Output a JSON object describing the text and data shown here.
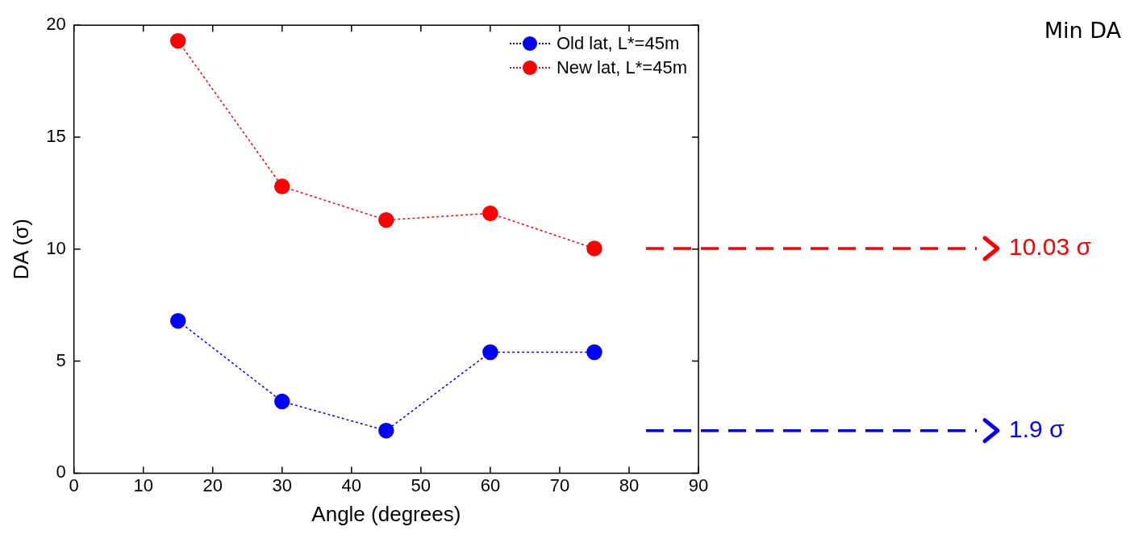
{
  "chart_data": {
    "type": "line",
    "xlabel": "Angle (degrees)",
    "ylabel": "DA (σ)",
    "x": [
      15,
      30,
      45,
      60,
      75
    ],
    "series": [
      {
        "name": "Old lat, L*=45m",
        "color": "#0000ff",
        "values": [
          6.8,
          3.2,
          1.9,
          5.4,
          5.4
        ]
      },
      {
        "name": "New lat, L*=45m",
        "color": "#ff0000",
        "values": [
          19.3,
          12.8,
          11.3,
          11.6,
          10.03
        ]
      }
    ],
    "xlim": [
      0,
      90
    ],
    "xticks": [
      0,
      10,
      20,
      30,
      40,
      50,
      60,
      70,
      80,
      90
    ],
    "ylim": [
      0,
      20
    ],
    "yticks": [
      0,
      5,
      10,
      15,
      20
    ],
    "grid": false,
    "legend": "top right",
    "marker": "circle",
    "line_style": "dotted",
    "ref_lines": [
      {
        "axis": "y",
        "value": 10.03,
        "label": "10.03 σ",
        "color": "#ff0000",
        "line_style": "dashed"
      },
      {
        "axis": "y",
        "value": 1.9,
        "label": "1.9 σ",
        "color": "#0000ff",
        "line_style": "dashed"
      }
    ],
    "annotations": [
      "Min DA"
    ]
  }
}
